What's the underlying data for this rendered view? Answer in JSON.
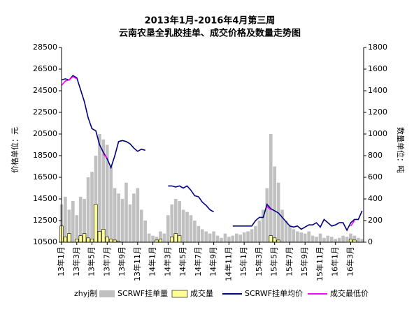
{
  "chart_data": {
    "type": "combo",
    "title": "2013年1月-2016年4月第三周",
    "subtitle": "云南农垦全乳胶挂单、成交价格及数量走势图",
    "y_label": "价格单位：元",
    "y2_label": "数量单位：吨",
    "source": "zhyj制",
    "x": [
      0,
      0.5,
      1,
      1.5,
      2,
      2.5,
      3,
      3.5,
      4,
      4.5,
      5,
      5.5,
      6,
      6.5,
      7,
      7.5,
      8,
      8.5,
      9,
      9.5,
      10,
      10.5,
      11,
      11.5,
      12,
      12.5,
      13,
      13.5,
      14,
      14.5,
      15,
      15.5,
      16,
      16.5,
      17,
      17.5,
      18,
      18.5,
      19,
      19.5,
      20,
      20.5,
      21,
      21.5,
      22,
      22.5,
      23,
      23.5,
      24,
      24.5,
      25,
      25.5,
      26,
      26.5,
      27,
      27.5,
      28,
      28.5,
      29,
      29.5,
      30,
      30.5,
      31,
      31.5,
      32,
      32.5,
      33,
      33.5,
      34,
      34.5,
      35,
      35.5,
      36,
      36.5,
      37,
      37.5,
      38,
      38.5,
      39,
      39.5
    ],
    "xlim": [
      0,
      39.7
    ],
    "xticks": [
      {
        "value": 0,
        "label": "13年1月"
      },
      {
        "value": 2,
        "label": "13年3月"
      },
      {
        "value": 4,
        "label": "13年5月"
      },
      {
        "value": 6,
        "label": "13年7月"
      },
      {
        "value": 8,
        "label": "13年9月"
      },
      {
        "value": 10,
        "label": "13年11月"
      },
      {
        "value": 12,
        "label": "14年1月"
      },
      {
        "value": 14,
        "label": "14年3月"
      },
      {
        "value": 16,
        "label": "14年5月"
      },
      {
        "value": 18,
        "label": "14年7月"
      },
      {
        "value": 20,
        "label": "14年9月"
      },
      {
        "value": 22,
        "label": "14年11月"
      },
      {
        "value": 24,
        "label": "15年1月"
      },
      {
        "value": 26,
        "label": "15年3月"
      },
      {
        "value": 28,
        "label": "15年5月"
      },
      {
        "value": 30,
        "label": "15年7月"
      },
      {
        "value": 32,
        "label": "15年9月"
      },
      {
        "value": 34,
        "label": "15年11月"
      },
      {
        "value": 36,
        "label": "16年1月"
      },
      {
        "value": 38,
        "label": "16年3月"
      }
    ],
    "ylim": [
      10500,
      28500
    ],
    "yticks": [
      10500,
      12500,
      14500,
      16500,
      18500,
      20500,
      22500,
      24500,
      26500,
      28500
    ],
    "y2lim": [
      0,
      1800
    ],
    "y2ticks": [
      0,
      200,
      400,
      600,
      800,
      1000,
      1200,
      1400,
      1600,
      1800
    ],
    "series": [
      {
        "name": "SCRWF挂单量",
        "kind": "bar",
        "axis": "y2",
        "color": "#c0c0c0",
        "values": [
          350,
          420,
          300,
          380,
          250,
          420,
          400,
          600,
          650,
          800,
          1000,
          950,
          900,
          700,
          500,
          450,
          400,
          550,
          350,
          450,
          500,
          300,
          200,
          80,
          60,
          50,
          100,
          80,
          250,
          350,
          400,
          380,
          300,
          280,
          250,
          200,
          150,
          120,
          100,
          80,
          100,
          60,
          40,
          80,
          50,
          60,
          80,
          70,
          90,
          100,
          120,
          150,
          200,
          300,
          500,
          1000,
          700,
          550,
          300,
          200,
          150,
          120,
          100,
          90,
          80,
          100,
          60,
          50,
          80,
          40,
          60,
          50,
          30,
          40,
          60,
          50,
          80,
          60,
          40,
          30
        ]
      },
      {
        "name": "成交量",
        "kind": "bar",
        "axis": "y2",
        "color": "#ffff99",
        "values": [
          150,
          50,
          80,
          0,
          30,
          60,
          80,
          40,
          30,
          350,
          100,
          120,
          50,
          30,
          20,
          10,
          0,
          0,
          0,
          0,
          0,
          0,
          0,
          0,
          0,
          20,
          30,
          0,
          0,
          50,
          80,
          60,
          0,
          0,
          0,
          0,
          0,
          0,
          0,
          0,
          0,
          0,
          0,
          0,
          0,
          0,
          0,
          0,
          0,
          0,
          0,
          0,
          0,
          0,
          0,
          60,
          40,
          20,
          0,
          0,
          0,
          0,
          0,
          0,
          0,
          0,
          0,
          0,
          0,
          0,
          0,
          0,
          0,
          0,
          0,
          0,
          30,
          20,
          0,
          0
        ]
      },
      {
        "name": "SCRWF挂单均价",
        "kind": "line",
        "axis": "y",
        "color": "#000080",
        "values": [
          25500,
          25600,
          25500,
          25900,
          25700,
          24600,
          23500,
          22000,
          21000,
          20800,
          19500,
          18800,
          18200,
          17400,
          18500,
          19800,
          19900,
          19800,
          19600,
          19200,
          18900,
          19100,
          19000,
          null,
          null,
          20000,
          null,
          null,
          15700,
          15700,
          15600,
          15700,
          15500,
          15700,
          15300,
          14800,
          14700,
          14200,
          13900,
          13500,
          13300,
          null,
          null,
          12800,
          null,
          12000,
          12000,
          12000,
          12000,
          12000,
          12000,
          12500,
          12800,
          12800,
          14000,
          13600,
          13400,
          13200,
          12800,
          12400,
          12000,
          11900,
          12000,
          11700,
          11900,
          12100,
          12100,
          12300,
          11900,
          12600,
          12300,
          12000,
          12100,
          12300,
          12300,
          11600,
          12300,
          12600,
          12600,
          13400
        ]
      },
      {
        "name": "成交最低价",
        "kind": "line",
        "axis": "y",
        "color": "#ff00ff",
        "values": [
          25000,
          25400,
          25500,
          25800,
          25600,
          null,
          null,
          null,
          null,
          null,
          null,
          18600,
          18300,
          null,
          null,
          null,
          null,
          null,
          null,
          null,
          null,
          null,
          null,
          null,
          null,
          null,
          null,
          null,
          null,
          null,
          null,
          null,
          null,
          null,
          null,
          null,
          null,
          null,
          null,
          null,
          null,
          null,
          null,
          null,
          null,
          null,
          null,
          null,
          null,
          null,
          null,
          null,
          null,
          null,
          13800,
          13500,
          null,
          null,
          null,
          null,
          null,
          null,
          null,
          null,
          null,
          null,
          null,
          null,
          null,
          null,
          null,
          null,
          null,
          null,
          null,
          null,
          12000,
          12500,
          null,
          null
        ]
      }
    ]
  }
}
